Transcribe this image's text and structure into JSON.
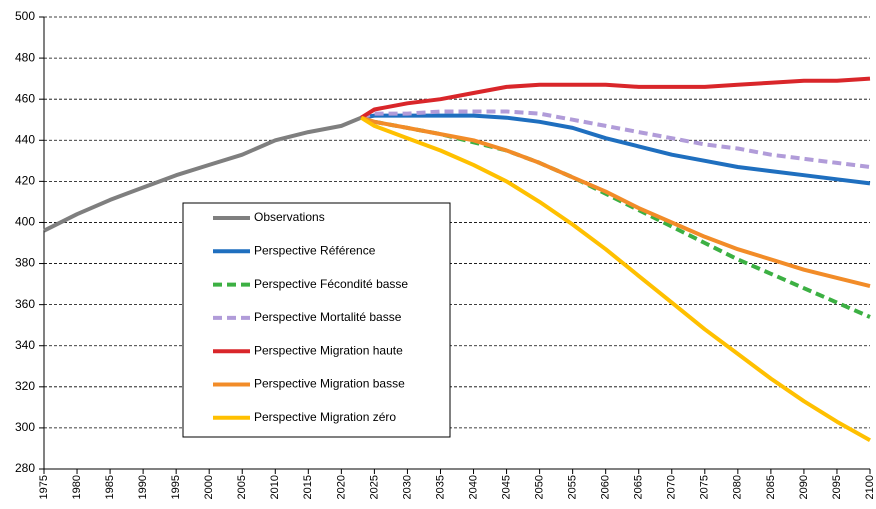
{
  "chart_data": {
    "type": "line",
    "x": [
      1975,
      1980,
      1985,
      1990,
      1995,
      2000,
      2005,
      2010,
      2015,
      2020,
      2023,
      2025,
      2030,
      2035,
      2040,
      2045,
      2050,
      2055,
      2060,
      2065,
      2070,
      2075,
      2080,
      2085,
      2090,
      2095,
      2100
    ],
    "xlim": [
      1975,
      2100
    ],
    "xticks": [
      1975,
      1980,
      1985,
      1990,
      1995,
      2000,
      2005,
      2010,
      2015,
      2020,
      2025,
      2030,
      2035,
      2040,
      2045,
      2050,
      2055,
      2060,
      2065,
      2070,
      2075,
      2080,
      2085,
      2090,
      2095,
      2100
    ],
    "ylim": [
      280,
      500
    ],
    "yticks": [
      280,
      300,
      320,
      340,
      360,
      380,
      400,
      420,
      440,
      460,
      480,
      500
    ],
    "grid": true,
    "series": [
      {
        "name": "Observations",
        "color": "#7f7f7f",
        "dash": false,
        "values": [
          396,
          404,
          411,
          417,
          423,
          428,
          433,
          440,
          444,
          447,
          451,
          null,
          null,
          null,
          null,
          null,
          null,
          null,
          null,
          null,
          null,
          null,
          null,
          null,
          null,
          null,
          null
        ]
      },
      {
        "name": "Perspective Référence",
        "color": "#1f6fbf",
        "dash": false,
        "values": [
          null,
          null,
          null,
          null,
          null,
          null,
          null,
          null,
          null,
          null,
          451,
          452,
          452,
          452,
          452,
          451,
          449,
          446,
          441,
          437,
          433,
          430,
          427,
          425,
          423,
          421,
          419
        ]
      },
      {
        "name": "Perspective Fécondité basse",
        "color": "#3cb043",
        "dash": true,
        "values": [
          null,
          null,
          null,
          null,
          null,
          null,
          null,
          null,
          null,
          null,
          451,
          449,
          446,
          443,
          439,
          435,
          429,
          422,
          414,
          406,
          398,
          390,
          382,
          375,
          368,
          361,
          354
        ]
      },
      {
        "name": "Perspective Mortalité basse",
        "color": "#b19cd9",
        "dash": true,
        "values": [
          null,
          null,
          null,
          null,
          null,
          null,
          null,
          null,
          null,
          null,
          451,
          453,
          453,
          454,
          454,
          454,
          453,
          450,
          447,
          444,
          441,
          438,
          436,
          433,
          431,
          429,
          427
        ]
      },
      {
        "name": "Perspective Migration haute",
        "color": "#d9262a",
        "dash": false,
        "values": [
          null,
          null,
          null,
          null,
          null,
          null,
          null,
          null,
          null,
          null,
          451,
          455,
          458,
          460,
          463,
          466,
          467,
          467,
          467,
          466,
          466,
          466,
          467,
          468,
          469,
          469,
          470
        ]
      },
      {
        "name": "Perspective Migration basse",
        "color": "#f28c28",
        "dash": false,
        "values": [
          null,
          null,
          null,
          null,
          null,
          null,
          null,
          null,
          null,
          null,
          451,
          449,
          446,
          443,
          440,
          435,
          429,
          422,
          415,
          407,
          400,
          393,
          387,
          382,
          377,
          373,
          369
        ]
      },
      {
        "name": "Perspective Migration zéro",
        "color": "#ffc000",
        "dash": false,
        "values": [
          null,
          null,
          null,
          null,
          null,
          null,
          null,
          null,
          null,
          null,
          451,
          447,
          441,
          435,
          428,
          420,
          410,
          399,
          387,
          374,
          361,
          348,
          336,
          324,
          313,
          303,
          294
        ]
      }
    ]
  }
}
